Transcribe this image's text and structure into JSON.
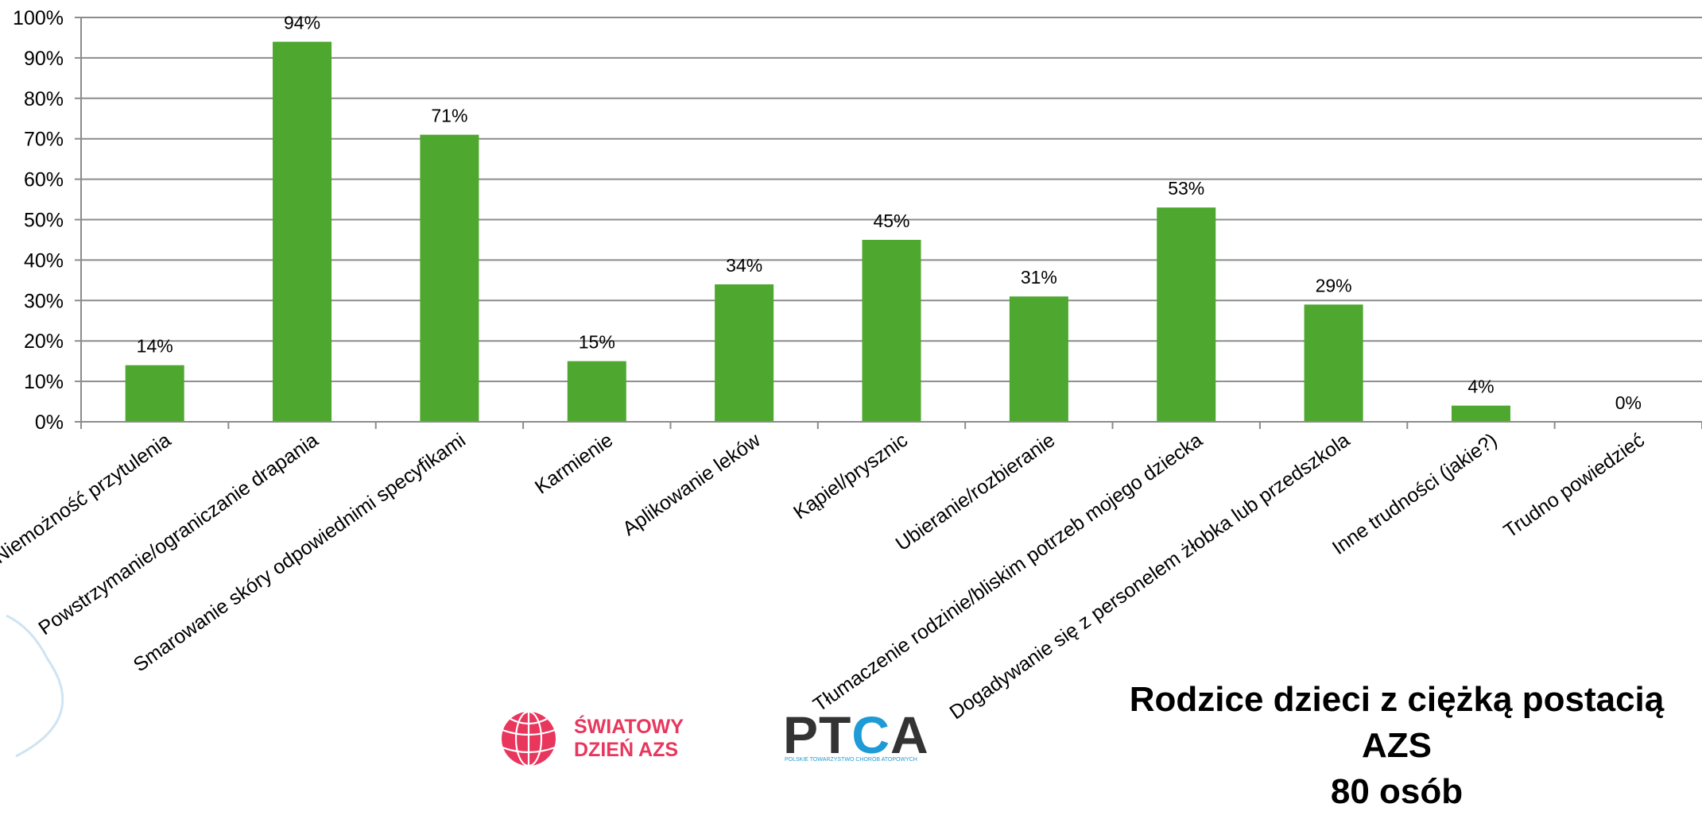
{
  "chart_data": {
    "type": "bar",
    "categories": [
      "Niemożność przytulenia",
      "Powstrzymanie/ograniczanie drapania",
      "Smarowanie skóry odpowiednimi specyfikami",
      "Karmienie",
      "Aplikowanie leków",
      "Kąpiel/prysznic",
      "Ubieranie/rozbieranie",
      "Tłumaczenie rodzinie/bliskim potrzeb mojego dziecka",
      "Dogadywanie się z personelem żłobka lub przedszkola",
      "Inne trudności (jakie?)",
      "Trudno powiedzieć"
    ],
    "values": [
      14,
      94,
      71,
      15,
      34,
      45,
      31,
      53,
      29,
      4,
      0
    ],
    "data_labels": [
      "14%",
      "94%",
      "71%",
      "15%",
      "34%",
      "45%",
      "31%",
      "53%",
      "29%",
      "4%",
      "0%"
    ],
    "y_ticks": [
      "0%",
      "10%",
      "20%",
      "30%",
      "40%",
      "50%",
      "60%",
      "70%",
      "80%",
      "90%",
      "100%"
    ],
    "ylim": [
      0,
      100
    ],
    "grid": true,
    "bar_color": "#4ea72e"
  },
  "caption": {
    "line1": "Rodzice dzieci z ciężką postacią AZS",
    "line2": "80 osób"
  },
  "logos": {
    "azs_line1": "ŚWIATOWY",
    "azs_line2": "DZIEŃ AZS",
    "ptca_word_a": "PT",
    "ptca_word_b": "C",
    "ptca_word_c": "A",
    "ptca_sub": "POLSKIE TOWARZYSTWO CHORÓB ATOPOWYCH"
  }
}
